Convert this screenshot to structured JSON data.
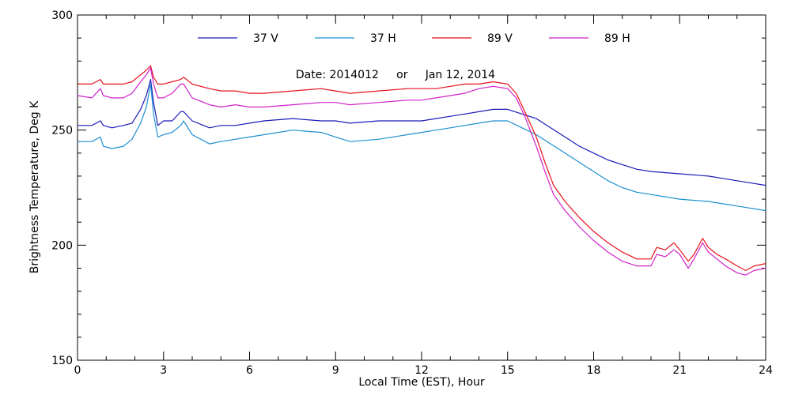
{
  "chart_data": {
    "type": "line",
    "title": "",
    "annotation": "Date: 2014012     or     Jan 12, 2014",
    "xlabel": "Local Time (EST), Hour",
    "ylabel": "Brightness Temperature, Deg K",
    "xlim": [
      0,
      24
    ],
    "ylim": [
      150,
      300
    ],
    "xticks": [
      0,
      3,
      6,
      9,
      12,
      15,
      18,
      21,
      24
    ],
    "yticks": [
      150,
      200,
      250,
      300
    ],
    "legend_position": "top",
    "grid": false,
    "series": [
      {
        "name": "37 V",
        "color": "#1a1ab8",
        "x": [
          0,
          0.5,
          0.8,
          0.9,
          1.2,
          1.6,
          1.9,
          2.2,
          2.4,
          2.55,
          2.65,
          2.8,
          3.0,
          3.3,
          3.6,
          3.7,
          4.0,
          4.6,
          5.0,
          5.5,
          6.0,
          6.5,
          7.5,
          8.5,
          9.0,
          9.5,
          10.5,
          11.5,
          12.0,
          12.5,
          13.0,
          13.5,
          14.0,
          14.5,
          15.0,
          15.5,
          16.0,
          16.5,
          17.0,
          17.5,
          18.0,
          18.5,
          19.0,
          19.5,
          20.0,
          21.0,
          22.0,
          22.5,
          23.0,
          23.5,
          24.0
        ],
        "values": [
          252,
          252,
          254,
          252,
          251,
          252,
          253,
          259,
          265,
          272,
          262,
          252,
          254,
          254,
          258,
          258,
          254,
          251,
          252,
          252,
          253,
          254,
          255,
          254,
          254,
          253,
          254,
          254,
          254,
          255,
          256,
          257,
          258,
          259,
          259,
          257,
          255,
          251,
          247,
          243,
          240,
          237,
          235,
          233,
          232,
          231,
          230,
          229,
          228,
          227,
          226
        ]
      },
      {
        "name": "37 H",
        "color": "#1c8fd0",
        "x": [
          0,
          0.5,
          0.8,
          0.9,
          1.2,
          1.6,
          1.9,
          2.2,
          2.4,
          2.55,
          2.65,
          2.8,
          3.0,
          3.3,
          3.6,
          3.7,
          4.0,
          4.6,
          5.0,
          5.5,
          6.0,
          6.5,
          7.5,
          8.5,
          9.0,
          9.5,
          10.5,
          11.5,
          12.0,
          12.5,
          13.0,
          13.5,
          14.0,
          14.5,
          15.0,
          15.5,
          16.0,
          16.5,
          17.0,
          17.5,
          18.0,
          18.5,
          19.0,
          19.5,
          20.0,
          21.0,
          22.0,
          22.5,
          23.0,
          23.5,
          24.0
        ],
        "values": [
          245,
          245,
          247,
          243,
          242,
          243,
          246,
          253,
          260,
          270,
          257,
          247,
          248,
          249,
          252,
          254,
          248,
          244,
          245,
          246,
          247,
          248,
          250,
          249,
          247,
          245,
          246,
          248,
          249,
          250,
          251,
          252,
          253,
          254,
          254,
          251,
          248,
          244,
          240,
          236,
          232,
          228,
          225,
          223,
          222,
          220,
          219,
          218,
          217,
          216,
          215
        ]
      },
      {
        "name": "89 V",
        "color": "#e8101c",
        "x": [
          0,
          0.5,
          0.8,
          0.9,
          1.2,
          1.6,
          1.9,
          2.2,
          2.4,
          2.55,
          2.65,
          2.8,
          3.0,
          3.3,
          3.6,
          3.7,
          4.0,
          4.6,
          5.0,
          5.5,
          6.0,
          6.5,
          7.5,
          8.5,
          9.0,
          9.5,
          10.5,
          11.5,
          12.0,
          12.5,
          13.0,
          13.5,
          14.0,
          14.5,
          15.0,
          15.3,
          15.6,
          16.0,
          16.3,
          16.6,
          17.0,
          17.5,
          18.0,
          18.5,
          19.0,
          19.5,
          20.0,
          20.2,
          20.5,
          20.8,
          21.0,
          21.3,
          21.5,
          21.8,
          22.0,
          22.3,
          22.6,
          23.0,
          23.3,
          23.6,
          24.0
        ],
        "values": [
          270,
          270,
          272,
          270,
          270,
          270,
          271,
          274,
          276,
          278,
          273,
          270,
          270,
          271,
          272,
          273,
          270,
          268,
          267,
          267,
          266,
          266,
          267,
          268,
          267,
          266,
          267,
          268,
          268,
          268,
          269,
          270,
          270,
          271,
          270,
          266,
          258,
          247,
          236,
          226,
          219,
          212,
          206,
          201,
          197,
          194,
          194,
          199,
          198,
          201,
          198,
          193,
          196,
          203,
          199,
          196,
          194,
          191,
          189,
          191,
          192
        ]
      },
      {
        "name": "89 H",
        "color": "#d020c8",
        "x": [
          0,
          0.5,
          0.8,
          0.9,
          1.2,
          1.6,
          1.9,
          2.2,
          2.4,
          2.55,
          2.65,
          2.8,
          3.0,
          3.3,
          3.6,
          3.7,
          4.0,
          4.6,
          5.0,
          5.5,
          6.0,
          6.5,
          7.5,
          8.5,
          9.0,
          9.5,
          10.5,
          11.5,
          12.0,
          12.5,
          13.0,
          13.5,
          14.0,
          14.5,
          15.0,
          15.3,
          15.6,
          16.0,
          16.3,
          16.6,
          17.0,
          17.5,
          18.0,
          18.5,
          19.0,
          19.5,
          20.0,
          20.2,
          20.5,
          20.8,
          21.0,
          21.3,
          21.5,
          21.8,
          22.0,
          22.3,
          22.6,
          23.0,
          23.3,
          23.6,
          24.0
        ],
        "values": [
          265,
          264,
          268,
          265,
          264,
          264,
          266,
          271,
          274,
          277,
          270,
          264,
          264,
          266,
          270,
          270,
          264,
          261,
          260,
          261,
          260,
          260,
          261,
          262,
          262,
          261,
          262,
          263,
          263,
          264,
          265,
          266,
          268,
          269,
          268,
          264,
          256,
          243,
          232,
          222,
          215,
          208,
          202,
          197,
          193,
          191,
          191,
          196,
          195,
          198,
          196,
          190,
          194,
          201,
          197,
          194,
          191,
          188,
          187,
          189,
          190
        ]
      }
    ]
  }
}
